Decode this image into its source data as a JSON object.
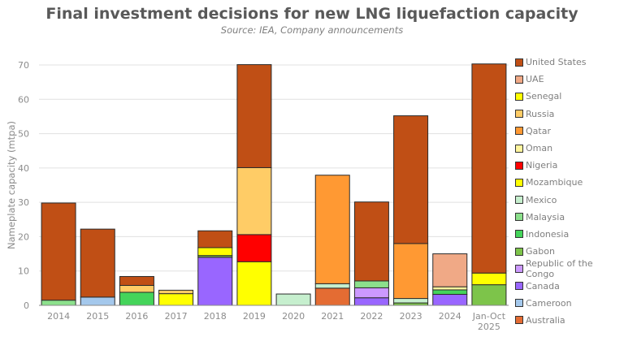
{
  "chart_data": {
    "type": "bar",
    "stacked": true,
    "title": "Final investment decisions for new LNG liquefaction capacity",
    "subtitle": "Source: IEA, Company announcements",
    "xlabel": "",
    "ylabel": "Nameplate capacity (mtpa)",
    "ylim": [
      0,
      70
    ],
    "yticks": [
      0,
      10,
      20,
      30,
      40,
      50,
      60,
      70
    ],
    "grid": true,
    "legend_position": "right",
    "categories": [
      "2014",
      "2015",
      "2016",
      "2017",
      "2018",
      "2019",
      "2020",
      "2021",
      "2022",
      "2023",
      "2024",
      "Jan-Oct 2025"
    ],
    "series": [
      {
        "name": "Australia",
        "color": "#E46C33",
        "values": [
          0,
          0,
          0,
          0,
          0,
          0,
          0,
          5.0,
          0,
          0,
          0,
          0
        ]
      },
      {
        "name": "Cameroon",
        "color": "#A4C8EC",
        "values": [
          0,
          2.4,
          0,
          0,
          0,
          0,
          0,
          0,
          0,
          0,
          0,
          0
        ]
      },
      {
        "name": "Canada",
        "color": "#9966FF",
        "values": [
          0,
          0,
          0,
          0,
          14.0,
          0,
          0,
          0,
          2.2,
          0,
          3.2,
          0
        ]
      },
      {
        "name": "Republic of the Congo",
        "color": "#CC99FF",
        "values": [
          0,
          0,
          0,
          0,
          0,
          0,
          0,
          0,
          2.9,
          0,
          0,
          0
        ]
      },
      {
        "name": "Gabon",
        "color": "#7DC44A",
        "values": [
          0,
          0,
          0,
          0,
          0.5,
          0,
          0,
          0,
          0,
          0.7,
          0,
          6.0
        ]
      },
      {
        "name": "Indonesia",
        "color": "#44D45A",
        "values": [
          0,
          0,
          3.8,
          0,
          0,
          0,
          0,
          0,
          0,
          0,
          1.3,
          0
        ]
      },
      {
        "name": "Malaysia",
        "color": "#8CE08C",
        "values": [
          1.5,
          0,
          0,
          0,
          0,
          0,
          0,
          0,
          2.0,
          0,
          0,
          0
        ]
      },
      {
        "name": "Mexico",
        "color": "#C6EFCE",
        "values": [
          0,
          0,
          0,
          0,
          0,
          0,
          3.3,
          1.3,
          0,
          1.3,
          0,
          0
        ]
      },
      {
        "name": "Mozambique",
        "color": "#FFFF00",
        "values": [
          0,
          0,
          0,
          3.4,
          0,
          12.7,
          0,
          0,
          0,
          0,
          0,
          0
        ]
      },
      {
        "name": "Nigeria",
        "color": "#FF0000",
        "values": [
          0,
          0,
          0,
          0,
          0,
          7.9,
          0,
          0,
          0,
          0,
          0,
          0
        ]
      },
      {
        "name": "Oman",
        "color": "#FFF59D",
        "values": [
          0,
          0,
          0,
          0,
          0,
          0,
          0,
          0,
          0,
          0,
          0.9,
          0
        ]
      },
      {
        "name": "Qatar",
        "color": "#FF9933",
        "values": [
          0,
          0,
          0,
          0,
          0,
          0,
          0,
          31.6,
          0,
          16.0,
          0,
          0
        ]
      },
      {
        "name": "Russia",
        "color": "#FFCC66",
        "values": [
          0,
          0,
          2.0,
          1.0,
          0,
          19.5,
          0,
          0,
          0,
          0,
          0,
          0
        ]
      },
      {
        "name": "Senegal",
        "color": "#FFFF00",
        "values": [
          0,
          0,
          0,
          0,
          2.3,
          0,
          0,
          0,
          0,
          0,
          0,
          3.4
        ]
      },
      {
        "name": "UAE",
        "color": "#F0A986",
        "values": [
          0,
          0,
          0,
          0,
          0,
          0,
          0,
          0,
          0,
          0,
          9.6,
          0
        ]
      },
      {
        "name": "United States",
        "color": "#C04F15",
        "values": [
          28.3,
          19.8,
          2.6,
          0,
          4.9,
          30.0,
          0,
          0,
          23.0,
          37.2,
          0,
          60.9
        ]
      }
    ]
  }
}
